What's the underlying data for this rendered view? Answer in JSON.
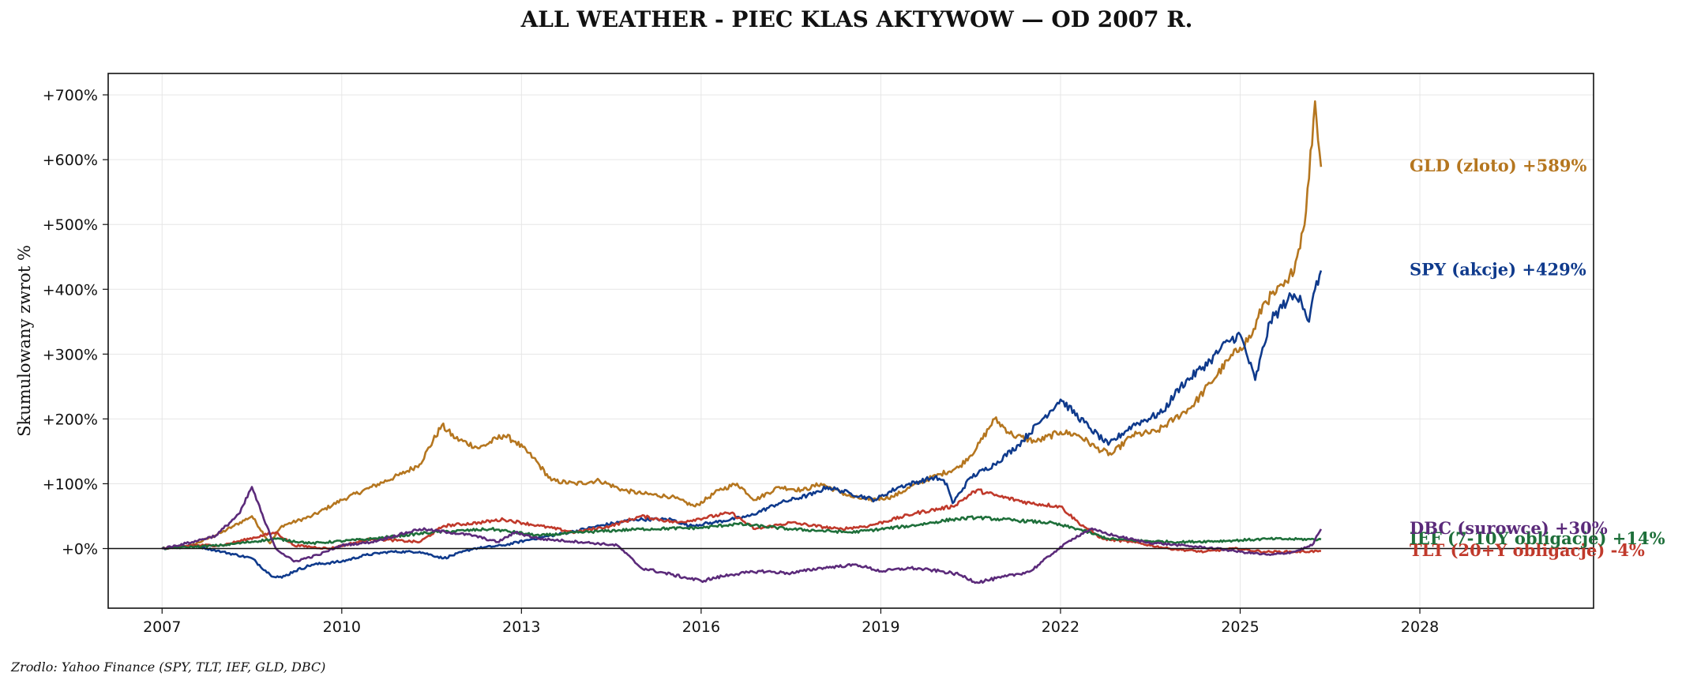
{
  "chart_data": {
    "type": "line",
    "title": "ALL WEATHER - PIEC KLAS AKTYWOW — OD 2007 R.",
    "ylabel": "Skumulowany zwrot %",
    "xlabel": "",
    "source": "Zrodlo: Yahoo Finance (SPY, TLT, IEF, GLD, DBC)",
    "xlim": [
      2006.1,
      2030.9
    ],
    "ylim": [
      -92,
      733
    ],
    "x_ticks": [
      2007,
      2010,
      2013,
      2016,
      2019,
      2022,
      2025,
      2028
    ],
    "x_tick_labels": [
      "2007",
      "2010",
      "2013",
      "2016",
      "2019",
      "2022",
      "2025",
      "2028"
    ],
    "y_ticks": [
      0,
      100,
      200,
      300,
      400,
      500,
      600,
      700
    ],
    "y_tick_labels": [
      "+0%",
      "+100%",
      "+200%",
      "+300%",
      "+400%",
      "+500%",
      "+600%",
      "+700%"
    ],
    "grid": true,
    "zero_line": true,
    "series": [
      {
        "name": "GLD (zloto)",
        "end_label": "GLD (zloto)  +589%",
        "color": "#b5761f",
        "x": [
          2007.0,
          2007.5,
          2008.0,
          2008.2,
          2008.5,
          2008.8,
          2009.0,
          2009.5,
          2010.0,
          2010.5,
          2011.0,
          2011.3,
          2011.67,
          2011.9,
          2012.3,
          2012.7,
          2012.9,
          2013.2,
          2013.5,
          2013.9,
          2014.3,
          2014.7,
          2015.0,
          2015.5,
          2015.9,
          2016.3,
          2016.6,
          2016.9,
          2017.3,
          2017.7,
          2018.0,
          2018.5,
          2018.8,
          2019.2,
          2019.6,
          2020.0,
          2020.3,
          2020.6,
          2020.9,
          2021.2,
          2021.6,
          2022.0,
          2022.3,
          2022.6,
          2022.85,
          2023.2,
          2023.6,
          2023.9,
          2024.2,
          2024.5,
          2024.8,
          2025.0,
          2025.2,
          2025.4,
          2025.6,
          2025.8,
          2025.95,
          2026.1,
          2026.25,
          2026.35
        ],
        "y": [
          0,
          5,
          25,
          35,
          50,
          8,
          35,
          50,
          75,
          95,
          115,
          130,
          190,
          170,
          155,
          175,
          165,
          140,
          105,
          100,
          105,
          90,
          85,
          80,
          65,
          90,
          100,
          75,
          95,
          90,
          100,
          80,
          75,
          80,
          100,
          115,
          125,
          155,
          200,
          175,
          165,
          180,
          175,
          155,
          145,
          175,
          180,
          200,
          220,
          255,
          290,
          310,
          330,
          380,
          395,
          410,
          450,
          520,
          690,
          589
        ]
      },
      {
        "name": "SPY (akcje)",
        "end_label": "SPY (akcje)  +429%",
        "color": "#0f3a8c",
        "x": [
          2007.0,
          2007.5,
          2008.0,
          2008.5,
          2008.8,
          2009.0,
          2009.2,
          2009.5,
          2010.0,
          2010.4,
          2010.8,
          2011.3,
          2011.7,
          2012.2,
          2012.7,
          2013.2,
          2013.8,
          2014.3,
          2014.9,
          2015.5,
          2015.8,
          2016.2,
          2016.8,
          2017.3,
          2017.9,
          2018.1,
          2018.5,
          2018.9,
          2019.3,
          2019.9,
          2020.1,
          2020.2,
          2020.5,
          2020.9,
          2021.3,
          2021.7,
          2022.0,
          2022.5,
          2022.8,
          2023.2,
          2023.7,
          2024.0,
          2024.5,
          2024.8,
          2025.0,
          2025.25,
          2025.5,
          2025.8,
          2026.0,
          2026.15,
          2026.25,
          2026.35
        ],
        "y": [
          0,
          5,
          -5,
          -15,
          -40,
          -45,
          -35,
          -25,
          -20,
          -10,
          -5,
          -5,
          -15,
          0,
          5,
          15,
          25,
          35,
          45,
          45,
          35,
          40,
          50,
          70,
          85,
          95,
          85,
          75,
          95,
          110,
          100,
          70,
          110,
          130,
          160,
          200,
          230,
          185,
          160,
          190,
          210,
          250,
          290,
          320,
          330,
          260,
          350,
          385,
          390,
          350,
          400,
          429
        ]
      },
      {
        "name": "TLT (20+Y obligacje)",
        "end_label": "TLT (20+Y obligacje)  -4%",
        "color": "#c0392b",
        "x": [
          2007.0,
          2007.5,
          2008.0,
          2008.9,
          2009.2,
          2009.8,
          2010.5,
          2011.3,
          2011.7,
          2012.3,
          2012.7,
          2013.3,
          2013.9,
          2014.5,
          2015.0,
          2015.6,
          2016.5,
          2016.9,
          2017.5,
          2018.3,
          2018.8,
          2019.6,
          2020.2,
          2020.6,
          2021.0,
          2021.5,
          2022.0,
          2022.3,
          2022.7,
          2023.2,
          2023.8,
          2024.4,
          2024.9,
          2025.4,
          2025.9,
          2026.35
        ],
        "y": [
          0,
          5,
          5,
          25,
          5,
          0,
          15,
          10,
          35,
          40,
          45,
          35,
          25,
          35,
          50,
          40,
          55,
          30,
          40,
          30,
          35,
          55,
          65,
          90,
          80,
          70,
          65,
          40,
          15,
          10,
          0,
          -5,
          0,
          -5,
          -5,
          -4
        ]
      },
      {
        "name": "IEF (7-10Y obligacje)",
        "end_label": "IEF (7-10Y obligacje)  +14%",
        "color": "#1e6f3a",
        "x": [
          2007.0,
          2008.0,
          2008.9,
          2009.5,
          2010.5,
          2011.5,
          2012.5,
          2013.3,
          2014.0,
          2015.0,
          2016.0,
          2016.6,
          2017.5,
          2018.5,
          2019.5,
          2020.2,
          2020.6,
          2021.0,
          2021.8,
          2022.3,
          2022.8,
          2023.3,
          2024.0,
          2024.8,
          2025.5,
          2026.35
        ],
        "y": [
          0,
          5,
          15,
          8,
          15,
          25,
          30,
          20,
          25,
          30,
          32,
          38,
          30,
          25,
          35,
          45,
          48,
          45,
          40,
          30,
          15,
          12,
          10,
          12,
          15,
          14
        ]
      },
      {
        "name": "DBC (surowce)",
        "end_label": "DBC (surowce)  +30%",
        "color": "#5b2a7a",
        "x": [
          2007.0,
          2007.5,
          2007.9,
          2008.3,
          2008.5,
          2008.7,
          2008.9,
          2009.2,
          2009.6,
          2010.0,
          2010.5,
          2011.3,
          2011.8,
          2012.2,
          2012.6,
          2012.9,
          2013.3,
          2014.0,
          2014.6,
          2015.0,
          2015.5,
          2016.0,
          2016.5,
          2017.0,
          2017.5,
          2018.0,
          2018.6,
          2019.0,
          2019.5,
          2020.0,
          2020.3,
          2020.6,
          2021.0,
          2021.5,
          2021.9,
          2022.2,
          2022.5,
          2022.9,
          2023.4,
          2024.0,
          2024.6,
          2025.0,
          2025.5,
          2025.9,
          2026.2,
          2026.35
        ],
        "y": [
          0,
          10,
          20,
          55,
          95,
          45,
          0,
          -20,
          -10,
          5,
          10,
          30,
          25,
          20,
          10,
          25,
          15,
          10,
          5,
          -30,
          -40,
          -50,
          -40,
          -35,
          -38,
          -30,
          -25,
          -35,
          -30,
          -35,
          -40,
          -52,
          -45,
          -35,
          -5,
          15,
          30,
          20,
          10,
          5,
          0,
          -5,
          -10,
          -5,
          5,
          30
        ]
      }
    ]
  }
}
